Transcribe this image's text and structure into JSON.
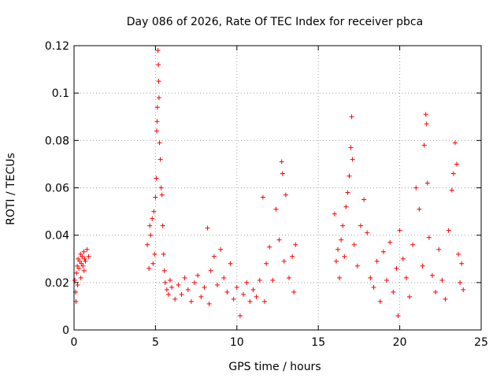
{
  "chart_data": {
    "type": "scatter",
    "title": "Day 086 of 2026, Rate Of TEC Index for receiver pbca",
    "xlabel": "GPS time / hours",
    "ylabel": "ROTI / TECUs",
    "xlim": [
      0,
      25
    ],
    "ylim": [
      0,
      0.12
    ],
    "xticks": [
      0,
      5,
      10,
      15,
      20,
      25
    ],
    "xtick_labels": [
      "0",
      "5",
      "10",
      "15",
      "20",
      "25"
    ],
    "yticks": [
      0,
      0.02,
      0.04,
      0.06,
      0.08,
      0.1,
      0.12
    ],
    "ytick_labels": [
      "0",
      "0.02",
      "0.04",
      "0.06",
      "0.08",
      "0.1",
      "0.12"
    ],
    "grid": true,
    "marker": "+",
    "color": "#ff0000",
    "series": [
      {
        "name": "ROTI",
        "points": [
          [
            0.05,
            0.021
          ],
          [
            0.1,
            0.016
          ],
          [
            0.15,
            0.024
          ],
          [
            0.2,
            0.027
          ],
          [
            0.25,
            0.03
          ],
          [
            0.3,
            0.026
          ],
          [
            0.35,
            0.029
          ],
          [
            0.4,
            0.032
          ],
          [
            0.45,
            0.028
          ],
          [
            0.5,
            0.031
          ],
          [
            0.55,
            0.027
          ],
          [
            0.6,
            0.033
          ],
          [
            0.65,
            0.03
          ],
          [
            0.7,
            0.029
          ],
          [
            0.8,
            0.034
          ],
          [
            0.9,
            0.031
          ],
          [
            0.12,
            0.012
          ],
          [
            0.22,
            0.019
          ],
          [
            0.42,
            0.022
          ],
          [
            0.62,
            0.025
          ],
          [
            4.5,
            0.036
          ],
          [
            4.6,
            0.026
          ],
          [
            4.65,
            0.044
          ],
          [
            4.7,
            0.04
          ],
          [
            4.8,
            0.047
          ],
          [
            4.85,
            0.028
          ],
          [
            4.9,
            0.05
          ],
          [
            4.95,
            0.032
          ],
          [
            5.0,
            0.056
          ],
          [
            5.05,
            0.064
          ],
          [
            5.08,
            0.084
          ],
          [
            5.1,
            0.088
          ],
          [
            5.12,
            0.094
          ],
          [
            5.15,
            0.118
          ],
          [
            5.18,
            0.112
          ],
          [
            5.2,
            0.105
          ],
          [
            5.22,
            0.098
          ],
          [
            5.25,
            0.079
          ],
          [
            5.3,
            0.072
          ],
          [
            5.35,
            0.06
          ],
          [
            5.4,
            0.057
          ],
          [
            5.45,
            0.044
          ],
          [
            5.5,
            0.032
          ],
          [
            5.55,
            0.025
          ],
          [
            5.6,
            0.02
          ],
          [
            5.7,
            0.017
          ],
          [
            5.8,
            0.015
          ],
          [
            5.9,
            0.021
          ],
          [
            6.0,
            0.018
          ],
          [
            6.2,
            0.013
          ],
          [
            6.4,
            0.019
          ],
          [
            6.6,
            0.015
          ],
          [
            6.8,
            0.022
          ],
          [
            7.0,
            0.017
          ],
          [
            7.2,
            0.012
          ],
          [
            7.4,
            0.02
          ],
          [
            7.6,
            0.023
          ],
          [
            7.8,
            0.014
          ],
          [
            8.0,
            0.018
          ],
          [
            8.2,
            0.043
          ],
          [
            8.3,
            0.011
          ],
          [
            8.4,
            0.025
          ],
          [
            8.6,
            0.031
          ],
          [
            8.8,
            0.019
          ],
          [
            9.0,
            0.034
          ],
          [
            9.2,
            0.022
          ],
          [
            9.4,
            0.016
          ],
          [
            9.6,
            0.028
          ],
          [
            9.8,
            0.013
          ],
          [
            10.0,
            0.018
          ],
          [
            10.2,
            0.006
          ],
          [
            10.4,
            0.015
          ],
          [
            10.6,
            0.02
          ],
          [
            10.8,
            0.012
          ],
          [
            11.0,
            0.017
          ],
          [
            11.2,
            0.014
          ],
          [
            11.4,
            0.021
          ],
          [
            11.6,
            0.056
          ],
          [
            11.7,
            0.012
          ],
          [
            11.8,
            0.028
          ],
          [
            12.0,
            0.035
          ],
          [
            12.2,
            0.021
          ],
          [
            12.4,
            0.051
          ],
          [
            12.6,
            0.038
          ],
          [
            12.75,
            0.071
          ],
          [
            12.8,
            0.066
          ],
          [
            12.9,
            0.029
          ],
          [
            13.0,
            0.057
          ],
          [
            13.2,
            0.022
          ],
          [
            13.4,
            0.031
          ],
          [
            13.5,
            0.016
          ],
          [
            13.6,
            0.036
          ],
          [
            16.0,
            0.049
          ],
          [
            16.1,
            0.029
          ],
          [
            16.2,
            0.034
          ],
          [
            16.3,
            0.022
          ],
          [
            16.4,
            0.038
          ],
          [
            16.5,
            0.044
          ],
          [
            16.6,
            0.031
          ],
          [
            16.7,
            0.052
          ],
          [
            16.8,
            0.058
          ],
          [
            16.9,
            0.065
          ],
          [
            17.0,
            0.077
          ],
          [
            17.05,
            0.09
          ],
          [
            17.1,
            0.072
          ],
          [
            17.2,
            0.036
          ],
          [
            17.4,
            0.027
          ],
          [
            17.6,
            0.044
          ],
          [
            17.8,
            0.055
          ],
          [
            18.0,
            0.041
          ],
          [
            18.2,
            0.022
          ],
          [
            18.4,
            0.018
          ],
          [
            18.6,
            0.029
          ],
          [
            18.8,
            0.012
          ],
          [
            19.0,
            0.033
          ],
          [
            19.2,
            0.021
          ],
          [
            19.4,
            0.037
          ],
          [
            19.6,
            0.016
          ],
          [
            19.8,
            0.026
          ],
          [
            19.9,
            0.006
          ],
          [
            20.0,
            0.042
          ],
          [
            20.2,
            0.03
          ],
          [
            20.4,
            0.022
          ],
          [
            20.6,
            0.014
          ],
          [
            20.8,
            0.036
          ],
          [
            21.0,
            0.06
          ],
          [
            21.2,
            0.051
          ],
          [
            21.4,
            0.027
          ],
          [
            21.5,
            0.078
          ],
          [
            21.6,
            0.091
          ],
          [
            21.65,
            0.087
          ],
          [
            21.7,
            0.062
          ],
          [
            21.8,
            0.039
          ],
          [
            22.0,
            0.023
          ],
          [
            22.2,
            0.016
          ],
          [
            22.4,
            0.034
          ],
          [
            22.6,
            0.021
          ],
          [
            22.8,
            0.013
          ],
          [
            23.0,
            0.042
          ],
          [
            23.2,
            0.059
          ],
          [
            23.3,
            0.066
          ],
          [
            23.4,
            0.079
          ],
          [
            23.5,
            0.07
          ],
          [
            23.6,
            0.032
          ],
          [
            23.7,
            0.02
          ],
          [
            23.8,
            0.028
          ],
          [
            23.9,
            0.017
          ]
        ]
      }
    ]
  }
}
